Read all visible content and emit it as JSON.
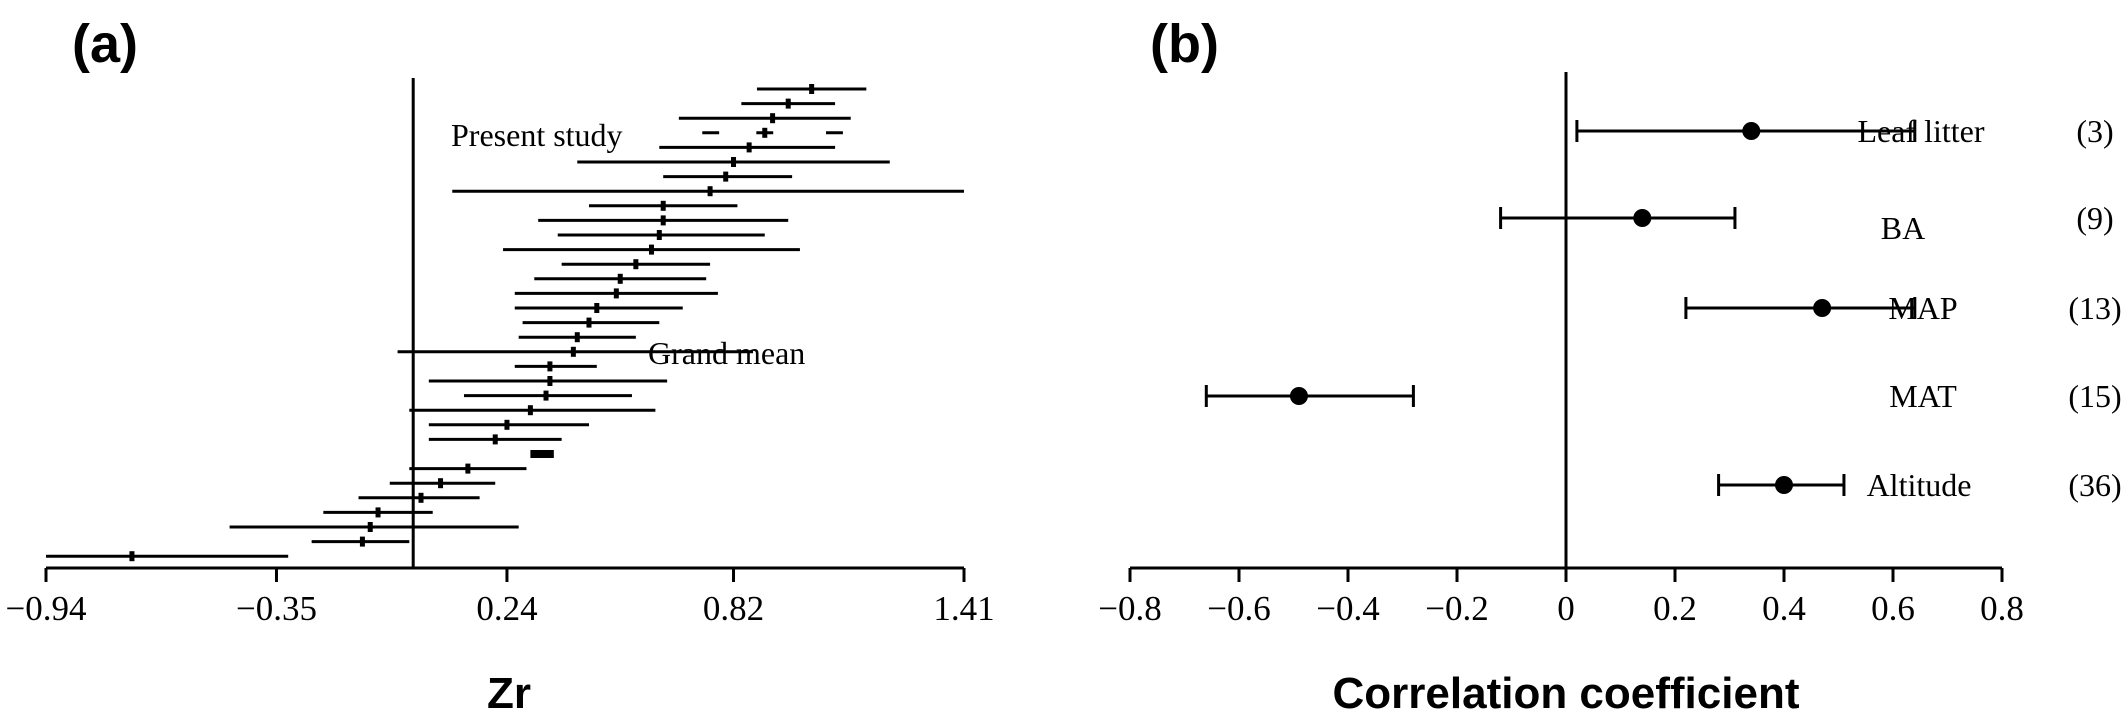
{
  "chart_data": [
    {
      "type": "forest",
      "panel_label": "(a)",
      "xlabel": "Zr",
      "ylabel": "",
      "xlim": [
        -0.94,
        1.41
      ],
      "xticks": [
        -0.94,
        -0.35,
        0.24,
        0.82,
        1.41
      ],
      "xtick_labels": [
        "−0.94",
        "−0.35",
        "0.24",
        "0.82",
        "1.41"
      ],
      "reference_line": 0.0,
      "annotations": {
        "present_study": "Present study",
        "grand_mean": "Grand mean"
      },
      "grand_mean": {
        "value": 0.33,
        "low": 0.3,
        "high": 0.36
      },
      "present_study_index": 3,
      "studies": [
        {
          "value": 1.02,
          "low": 0.88,
          "high": 1.16
        },
        {
          "value": 0.96,
          "low": 0.84,
          "high": 1.08
        },
        {
          "value": 0.92,
          "low": 0.68,
          "high": 1.12
        },
        {
          "value": 0.9,
          "low": 0.74,
          "high": 1.1
        },
        {
          "value": 0.86,
          "low": 0.63,
          "high": 1.08
        },
        {
          "value": 0.82,
          "low": 0.42,
          "high": 1.22
        },
        {
          "value": 0.8,
          "low": 0.64,
          "high": 0.97
        },
        {
          "value": 0.76,
          "low": 0.1,
          "high": 1.41
        },
        {
          "value": 0.64,
          "low": 0.45,
          "high": 0.83
        },
        {
          "value": 0.64,
          "low": 0.32,
          "high": 0.96
        },
        {
          "value": 0.63,
          "low": 0.37,
          "high": 0.9
        },
        {
          "value": 0.61,
          "low": 0.23,
          "high": 0.99
        },
        {
          "value": 0.57,
          "low": 0.38,
          "high": 0.76
        },
        {
          "value": 0.53,
          "low": 0.31,
          "high": 0.75
        },
        {
          "value": 0.52,
          "low": 0.26,
          "high": 0.78
        },
        {
          "value": 0.47,
          "low": 0.26,
          "high": 0.69
        },
        {
          "value": 0.45,
          "low": 0.28,
          "high": 0.63
        },
        {
          "value": 0.42,
          "low": 0.27,
          "high": 0.57
        },
        {
          "value": 0.41,
          "low": -0.04,
          "high": 0.87
        },
        {
          "value": 0.35,
          "low": 0.26,
          "high": 0.47
        },
        {
          "value": 0.35,
          "low": 0.04,
          "high": 0.65
        },
        {
          "value": 0.34,
          "low": 0.13,
          "high": 0.56
        },
        {
          "value": 0.3,
          "low": -0.01,
          "high": 0.62
        },
        {
          "value": 0.24,
          "low": 0.04,
          "high": 0.45
        },
        {
          "value": 0.21,
          "low": 0.04,
          "high": 0.38
        },
        {
          "value": 0.14,
          "low": -0.01,
          "high": 0.29
        },
        {
          "value": 0.07,
          "low": -0.06,
          "high": 0.21
        },
        {
          "value": 0.02,
          "low": -0.14,
          "high": 0.17
        },
        {
          "value": -0.09,
          "low": -0.23,
          "high": 0.05
        },
        {
          "value": -0.11,
          "low": -0.47,
          "high": 0.27
        },
        {
          "value": -0.13,
          "low": -0.26,
          "high": -0.01
        },
        {
          "value": -0.72,
          "low": -0.94,
          "high": -0.32
        }
      ]
    },
    {
      "type": "forest",
      "panel_label": "(b)",
      "xlabel": "Correlation coefficient",
      "ylabel": "",
      "xlim": [
        -0.8,
        0.8
      ],
      "xticks": [
        -0.8,
        -0.6,
        -0.4,
        -0.2,
        0,
        0.2,
        0.4,
        0.6,
        0.8
      ],
      "xtick_labels": [
        "−0.8",
        "−0.6",
        "−0.4",
        "−0.2",
        "0",
        "0.2",
        "0.4",
        "0.6",
        "0.8"
      ],
      "reference_line": 0.0,
      "points": [
        {
          "label": "Leaf litter",
          "n_label": "(3)",
          "value": 0.34,
          "low": 0.02,
          "high": 0.64
        },
        {
          "label": "BA",
          "n_label": "(9)",
          "value": 0.14,
          "low": -0.12,
          "high": 0.31
        },
        {
          "label": "MAP",
          "n_label": "(13)",
          "value": 0.47,
          "low": 0.22,
          "high": 0.64
        },
        {
          "label": "MAT",
          "n_label": "(15)",
          "value": -0.49,
          "low": -0.66,
          "high": -0.28
        },
        {
          "label": "Altitude",
          "n_label": "(36)",
          "value": 0.4,
          "low": 0.28,
          "high": 0.51
        }
      ]
    }
  ]
}
